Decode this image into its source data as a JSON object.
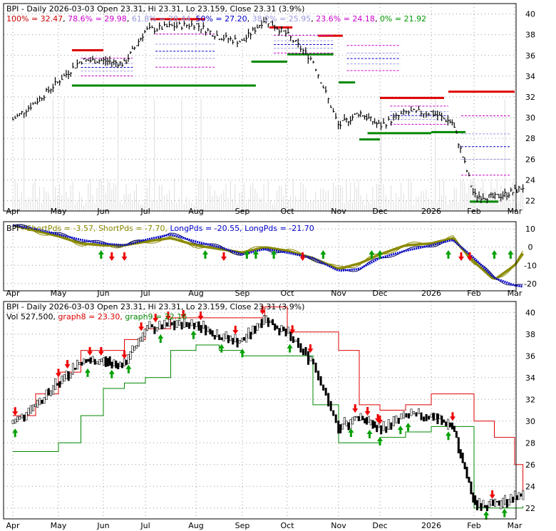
{
  "colors": {
    "background": "#ffffff",
    "grid": "#9a9a9a",
    "frame": "#000000",
    "price_bar": "#000000",
    "resistance": "#dd0000",
    "support": "#008800",
    "fib_100": "#cc0000",
    "fib_786": "#cc00cc",
    "fib_618": "#9999dd",
    "fib_50": "#0000cc",
    "fib_382": "#9999dd",
    "fib_236": "#cc00cc",
    "fib_0": "#009900",
    "short_pds": "#8a8a00",
    "long_pds": "#0000cc",
    "up_arrow": "#00a000",
    "down_arrow": "#ee0000",
    "volume": "#dddddd"
  },
  "panels": {
    "fib": {
      "ticker": "BPI - Daily 2026-03-03 Open 23.31, Hi 23.31, Lo 23.159, Close 23.31 (3.9%)",
      "fib_levels": [
        {
          "label": "100% = 32.47",
          "pct": "100%",
          "val": "32.47",
          "color_key": "fib_100"
        },
        {
          "label": "78.6% = 29.98",
          "pct": "78.6%",
          "val": "29.98",
          "color_key": "fib_786"
        },
        {
          "label": "61.8% = 28.44",
          "pct": "61.8%",
          "val": "28.44",
          "color_key": "fib_618"
        },
        {
          "label": "50% = 27.20",
          "pct": "50%",
          "val": "27.20",
          "color_key": "fib_50"
        },
        {
          "label": "38.2% = 25.95",
          "pct": "38.2%",
          "val": "25.95",
          "color_key": "fib_382"
        },
        {
          "label": "23.6% = 24.18",
          "pct": "23.6%",
          "val": "24.18",
          "color_key": "fib_236"
        },
        {
          "label": "0% = 21.92",
          "pct": "0%",
          "val": "21.92",
          "color_key": "fib_0"
        }
      ],
      "y_ticks": [
        "40",
        "38",
        "36",
        "34",
        "32",
        "30",
        "28",
        "26",
        "24",
        "22"
      ]
    },
    "pds": {
      "ticker": "BPI",
      "legend": [
        {
          "text": "ShortPds = -3.57,",
          "color_key": "short_pds"
        },
        {
          "text": "ShortPds = -7.70,",
          "color_key": "short_pds"
        },
        {
          "text": "LongPds = -20.55,",
          "color_key": "long_pds"
        },
        {
          "text": "LongPds = -21.70",
          "color_key": "long_pds"
        }
      ],
      "y_ticks": [
        "10",
        "0",
        "-10",
        "-20"
      ]
    },
    "sig": {
      "ticker": "BPI - Daily 2026-03-03 Open 23.31, Hi 23.31, Lo 23.159, Close 23.31 (3.9%)",
      "legend": [
        {
          "text": "Vol 527,500",
          "color_key": "price_bar"
        },
        {
          "text": "graph8 = 23.30,",
          "color_key": "resistance"
        },
        {
          "text": "graph9 = 22.16",
          "color_key": "support"
        }
      ],
      "y_ticks": [
        "40",
        "38",
        "36",
        "34",
        "32",
        "30",
        "28",
        "26",
        "24",
        "22"
      ]
    }
  },
  "x_labels": [
    "Apr",
    "May",
    "Jun",
    "Jul",
    "Aug",
    "Sep",
    "Oct",
    "Nov",
    "Dec",
    "2026",
    "Feb",
    "Mar"
  ],
  "chart_data": [
    {
      "type": "line",
      "title": "BPI - Daily 2026-03-03 Open 23.31, Hi 23.31, Lo 23.159, Close 23.31 (3.9%)",
      "x_axis": "month",
      "x": [
        0,
        0.5,
        1,
        1.5,
        2,
        2.5,
        3,
        3.5,
        4,
        4.5,
        5,
        5.5,
        6,
        6.5,
        7,
        7.5,
        8,
        8.5,
        9,
        9.5,
        10,
        10.5,
        11,
        11.2
      ],
      "series": [
        {
          "name": "Close",
          "values": [
            29.8,
            31.5,
            33.5,
            35.5,
            35.5,
            35.2,
            38.4,
            38.8,
            39.0,
            37.8,
            37.3,
            39.5,
            38.0,
            35.5,
            29.2,
            30.5,
            29.2,
            30.5,
            30.5,
            29.5,
            22.5,
            22.3,
            22.9,
            23.31
          ]
        }
      ],
      "ylim": [
        21,
        41
      ],
      "yticks": [
        40,
        38,
        36,
        34,
        32,
        30,
        28,
        26,
        24,
        22
      ]
    },
    {
      "type": "line",
      "title": "BPI",
      "x_axis": "month",
      "x": [
        0,
        0.5,
        1,
        1.5,
        2,
        2.5,
        3,
        3.5,
        4,
        4.5,
        5,
        5.5,
        6,
        6.5,
        7,
        7.5,
        8,
        8.5,
        9,
        9.5,
        10,
        10.5,
        11,
        11.2
      ],
      "series": [
        {
          "name": "ShortPds",
          "values": [
            12,
            9,
            6,
            2,
            1,
            1,
            3,
            5,
            1,
            -1,
            -3,
            0,
            -2,
            -6,
            -12,
            -9,
            -4,
            1,
            2,
            5,
            -8,
            -18,
            -10,
            -3.57
          ]
        },
        {
          "name": "LongPds",
          "values": [
            12,
            10,
            7,
            4,
            2,
            1,
            4,
            7,
            3,
            0,
            -4,
            -1,
            -3,
            -6,
            -13,
            -12,
            -6,
            -2,
            1,
            4,
            -6,
            -17,
            -21,
            -21.7
          ]
        }
      ],
      "ylim": [
        -24,
        14
      ],
      "yticks": [
        10,
        0,
        -10,
        -20
      ]
    },
    {
      "type": "line",
      "title": "BPI - Daily 2026-03-03 Open 23.31, Hi 23.31, Lo 23.159, Close 23.31 (3.9%)",
      "x_axis": "month",
      "x": [
        0,
        0.5,
        1,
        1.5,
        2,
        2.5,
        3,
        3.5,
        4,
        4.5,
        5,
        5.5,
        6,
        6.5,
        7,
        7.5,
        8,
        8.5,
        9,
        9.5,
        10,
        10.5,
        11,
        11.2
      ],
      "series": [
        {
          "name": "Close",
          "values": [
            29.8,
            31.5,
            33.5,
            35.5,
            35.5,
            35.2,
            38.4,
            38.8,
            39.0,
            37.8,
            37.3,
            39.5,
            38.0,
            35.5,
            29.2,
            30.5,
            29.2,
            30.5,
            30.5,
            29.5,
            22.5,
            22.3,
            22.9,
            23.31
          ]
        },
        {
          "name": "graph8",
          "values": [
            30.5,
            32.5,
            34.5,
            36.5,
            36.5,
            37.5,
            38.5,
            39.5,
            39.5,
            39.5,
            39.5,
            40.5,
            38.2,
            38.2,
            36.5,
            31.5,
            31.0,
            31.5,
            32.5,
            32.5,
            30.0,
            28.5,
            26.0,
            23.3
          ]
        },
        {
          "name": "graph9",
          "values": [
            27.2,
            27.2,
            28.0,
            30.5,
            33.0,
            33.5,
            34.0,
            36.5,
            37.0,
            36.5,
            36.0,
            36.0,
            36.0,
            31.5,
            28.0,
            28.0,
            28.5,
            29.0,
            29.5,
            29.5,
            22.0,
            22.0,
            22.0,
            22.16
          ]
        }
      ],
      "ylim": [
        21,
        41
      ],
      "yticks": [
        40,
        38,
        36,
        34,
        32,
        30,
        28,
        26,
        24,
        22
      ]
    }
  ]
}
